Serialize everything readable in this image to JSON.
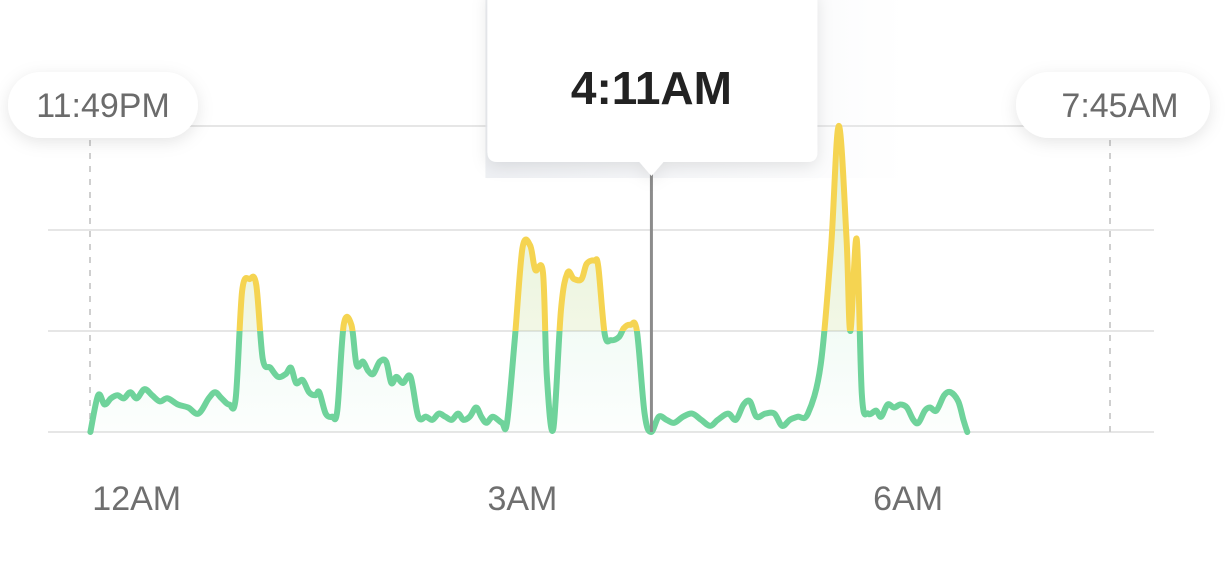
{
  "chart_data": {
    "type": "area",
    "x_ticks": [
      {
        "label": "12AM",
        "t": 0.18
      },
      {
        "label": "3AM",
        "t": 3.18
      },
      {
        "label": "6AM",
        "t": 6.18
      }
    ],
    "start_label": "11:49PM",
    "end_label": "7:45AM",
    "cursor_label": "4:11AM",
    "t_start": -0.1833,
    "t_end": 7.75,
    "t_cursor": 4.1833,
    "ylim": [
      0,
      100
    ],
    "threshold": 33,
    "gridlines": [
      0,
      33,
      66,
      100
    ],
    "colors": {
      "low": "#6fd39b",
      "high": "#f5d451",
      "grid": "#e6e6e6",
      "cursor": "#8c8c8c"
    },
    "points": [
      [
        -0.18,
        0
      ],
      [
        -0.12,
        12
      ],
      [
        -0.07,
        9
      ],
      [
        -0.02,
        11
      ],
      [
        0.03,
        12
      ],
      [
        0.08,
        11
      ],
      [
        0.13,
        13
      ],
      [
        0.18,
        11
      ],
      [
        0.24,
        14
      ],
      [
        0.3,
        12
      ],
      [
        0.36,
        10
      ],
      [
        0.42,
        11
      ],
      [
        0.5,
        9
      ],
      [
        0.58,
        8
      ],
      [
        0.66,
        6
      ],
      [
        0.74,
        11
      ],
      [
        0.79,
        13
      ],
      [
        0.84,
        11
      ],
      [
        0.9,
        9
      ],
      [
        0.95,
        11
      ],
      [
        1.0,
        46
      ],
      [
        1.06,
        50
      ],
      [
        1.11,
        48
      ],
      [
        1.16,
        24
      ],
      [
        1.22,
        21
      ],
      [
        1.28,
        18
      ],
      [
        1.34,
        19
      ],
      [
        1.38,
        21
      ],
      [
        1.42,
        16
      ],
      [
        1.47,
        17
      ],
      [
        1.52,
        13
      ],
      [
        1.57,
        12
      ],
      [
        1.6,
        13
      ],
      [
        1.65,
        6
      ],
      [
        1.7,
        5
      ],
      [
        1.74,
        7
      ],
      [
        1.79,
        35
      ],
      [
        1.85,
        35
      ],
      [
        1.89,
        22
      ],
      [
        1.94,
        23
      ],
      [
        1.98,
        20
      ],
      [
        2.02,
        19
      ],
      [
        2.07,
        23
      ],
      [
        2.12,
        23
      ],
      [
        2.16,
        16
      ],
      [
        2.2,
        18
      ],
      [
        2.25,
        16
      ],
      [
        2.31,
        18
      ],
      [
        2.37,
        5
      ],
      [
        2.43,
        5
      ],
      [
        2.48,
        4
      ],
      [
        2.53,
        6
      ],
      [
        2.58,
        5
      ],
      [
        2.63,
        4
      ],
      [
        2.68,
        6
      ],
      [
        2.72,
        4
      ],
      [
        2.77,
        5
      ],
      [
        2.82,
        8
      ],
      [
        2.86,
        5
      ],
      [
        2.9,
        3
      ],
      [
        2.95,
        5
      ],
      [
        3.02,
        3
      ],
      [
        3.06,
        3
      ],
      [
        3.12,
        30
      ],
      [
        3.18,
        60
      ],
      [
        3.24,
        61
      ],
      [
        3.28,
        53
      ],
      [
        3.34,
        52
      ],
      [
        3.37,
        18
      ],
      [
        3.42,
        1
      ],
      [
        3.48,
        40
      ],
      [
        3.53,
        52
      ],
      [
        3.58,
        50
      ],
      [
        3.64,
        50
      ],
      [
        3.68,
        55
      ],
      [
        3.74,
        56
      ],
      [
        3.77,
        54
      ],
      [
        3.82,
        32
      ],
      [
        3.87,
        30
      ],
      [
        3.93,
        31
      ],
      [
        3.97,
        34
      ],
      [
        4.02,
        35
      ],
      [
        4.07,
        33
      ],
      [
        4.13,
        6
      ],
      [
        4.18,
        0
      ],
      [
        4.24,
        5
      ],
      [
        4.3,
        4
      ],
      [
        4.36,
        3
      ],
      [
        4.43,
        5
      ],
      [
        4.5,
        6
      ],
      [
        4.57,
        4
      ],
      [
        4.64,
        2
      ],
      [
        4.7,
        4
      ],
      [
        4.78,
        6
      ],
      [
        4.84,
        4
      ],
      [
        4.9,
        9
      ],
      [
        4.95,
        10
      ],
      [
        5.0,
        5
      ],
      [
        5.07,
        6
      ],
      [
        5.14,
        6
      ],
      [
        5.2,
        2
      ],
      [
        5.26,
        4
      ],
      [
        5.32,
        5
      ],
      [
        5.4,
        6
      ],
      [
        5.5,
        22
      ],
      [
        5.58,
        60
      ],
      [
        5.64,
        100
      ],
      [
        5.7,
        64
      ],
      [
        5.73,
        33
      ],
      [
        5.78,
        63
      ],
      [
        5.82,
        12
      ],
      [
        5.87,
        6
      ],
      [
        5.93,
        7
      ],
      [
        5.97,
        5
      ],
      [
        6.02,
        9
      ],
      [
        6.07,
        8
      ],
      [
        6.12,
        9
      ],
      [
        6.17,
        8
      ],
      [
        6.22,
        4
      ],
      [
        6.26,
        3
      ],
      [
        6.31,
        7
      ],
      [
        6.35,
        8
      ],
      [
        6.4,
        7
      ],
      [
        6.46,
        12
      ],
      [
        6.51,
        13
      ],
      [
        6.57,
        10
      ],
      [
        6.61,
        4
      ],
      [
        6.64,
        0
      ]
    ]
  }
}
